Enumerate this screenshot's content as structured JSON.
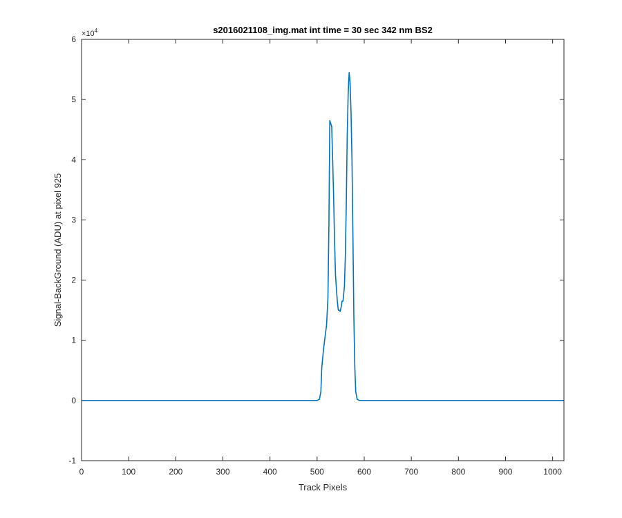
{
  "chart_data": {
    "type": "line",
    "title": "s2016021108_img.mat int time = 30 sec  342 nm BS2",
    "xlabel": "Track Pixels",
    "ylabel": "Signal-BackGround (ADU) at pixel 925",
    "xlim": [
      0,
      1024
    ],
    "ylim": [
      -10000,
      60000
    ],
    "x_ticks": [
      0,
      100,
      200,
      300,
      400,
      500,
      600,
      700,
      800,
      900,
      1000
    ],
    "x_tick_labels": [
      "0",
      "100",
      "200",
      "300",
      "400",
      "500",
      "600",
      "700",
      "800",
      "900",
      "1000"
    ],
    "y_ticks": [
      -10000,
      0,
      10000,
      20000,
      30000,
      40000,
      50000,
      60000
    ],
    "y_tick_labels": [
      "-1",
      "0",
      "1",
      "2",
      "3",
      "4",
      "5",
      "6"
    ],
    "y_exponent_label": "×10",
    "y_exponent_power": "4",
    "grid": false,
    "line_color": "#0072BD",
    "series": [
      {
        "x": [
          0,
          100,
          200,
          300,
          400,
          500,
          505,
          508,
          510,
          513,
          516,
          520,
          523,
          525,
          527,
          529,
          531,
          533,
          535,
          537,
          539,
          541,
          543,
          545,
          547,
          549,
          551,
          553,
          555,
          558,
          560,
          562,
          564,
          566,
          568,
          570,
          572,
          574,
          576,
          578,
          580,
          582,
          585,
          590,
          600,
          700,
          800,
          900,
          1000,
          1024
        ],
        "y": [
          0,
          0,
          0,
          0,
          0,
          0,
          200,
          1500,
          5500,
          8000,
          10000,
          12500,
          17000,
          29000,
          46500,
          46000,
          45500,
          40000,
          34000,
          27000,
          21000,
          18500,
          16500,
          15000,
          15000,
          14800,
          15500,
          16500,
          16500,
          19000,
          24000,
          33000,
          44000,
          51000,
          54500,
          53000,
          48000,
          40000,
          28000,
          14000,
          5500,
          1500,
          200,
          0,
          0,
          0,
          0,
          0,
          0,
          0
        ]
      }
    ]
  }
}
